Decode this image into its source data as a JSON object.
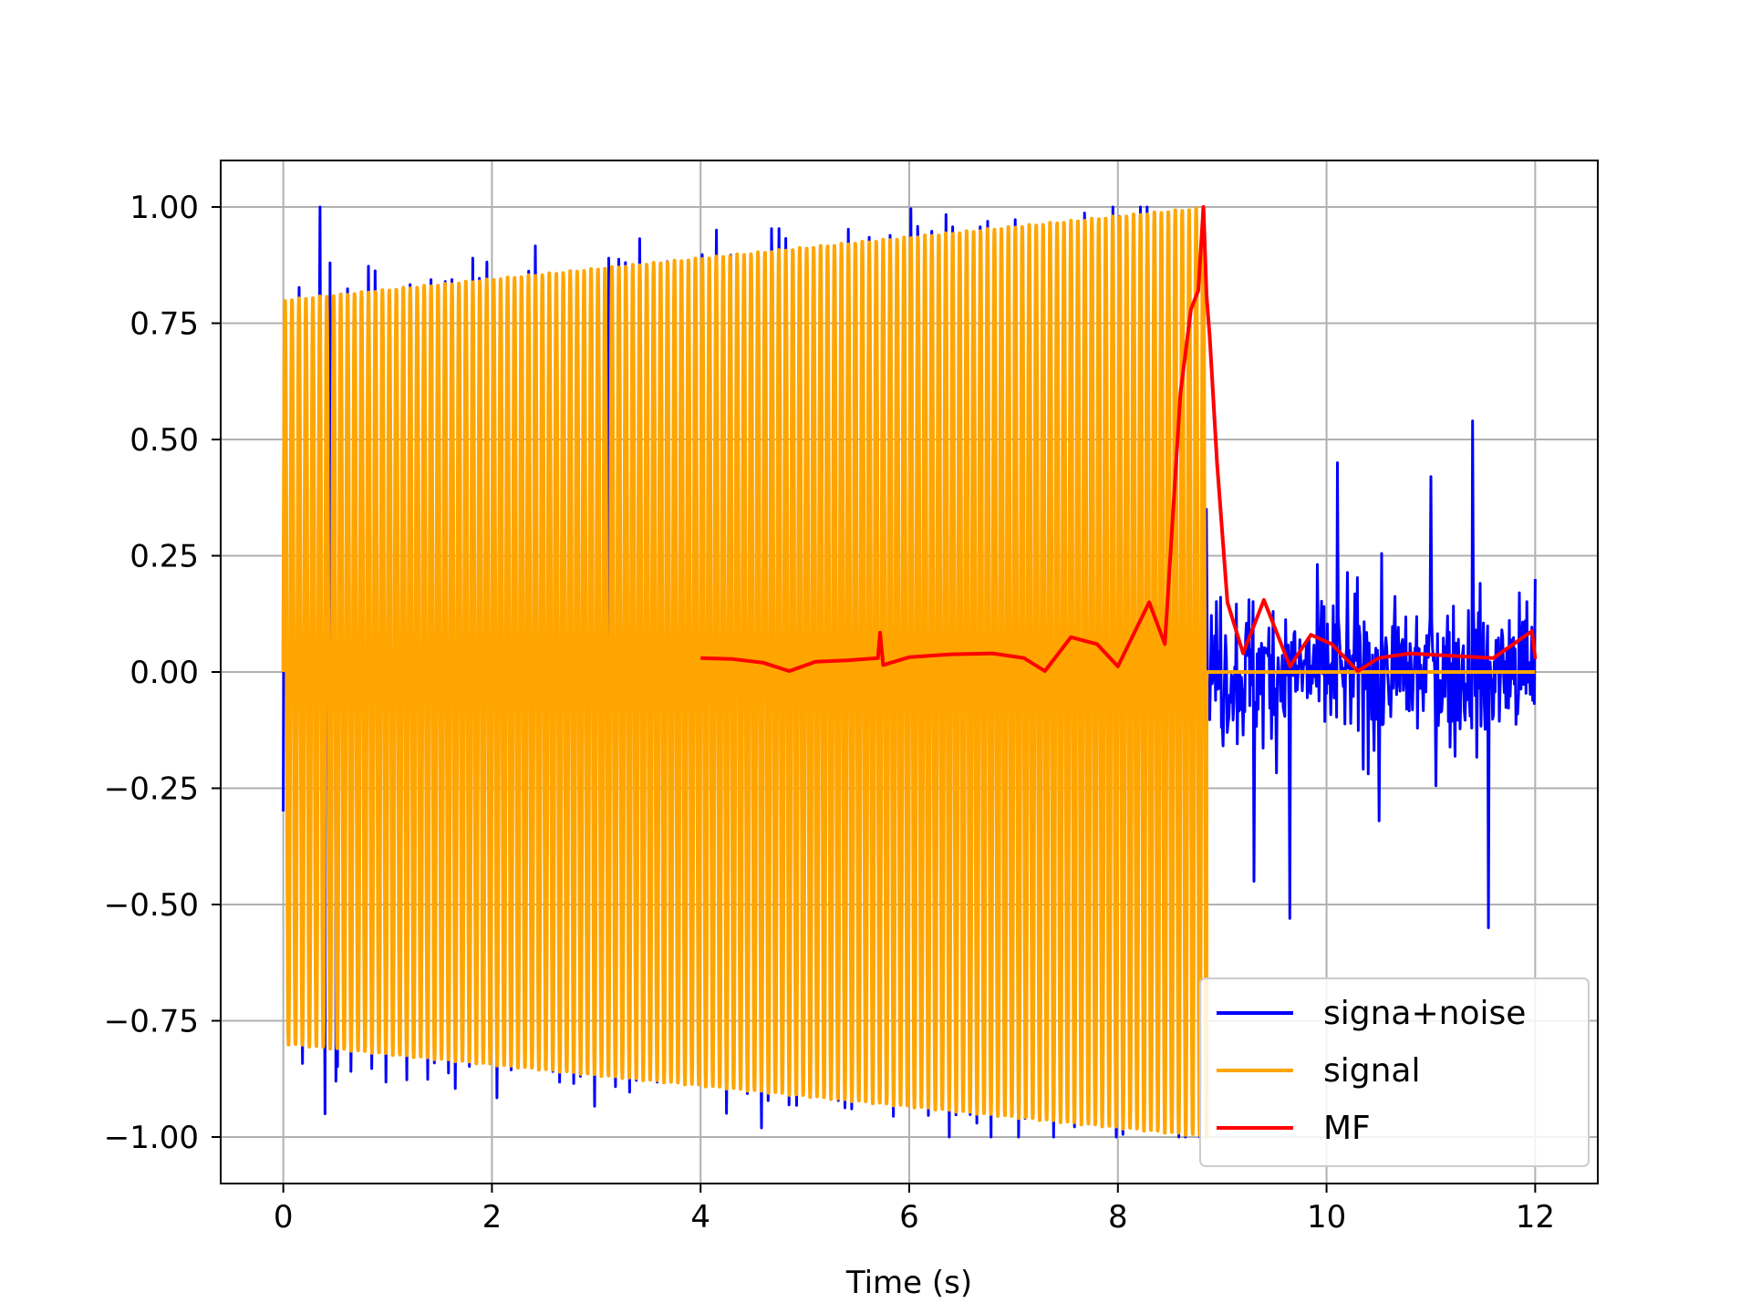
{
  "chart_data": {
    "type": "line",
    "title": "",
    "xlabel": "Time (s)",
    "ylabel": "",
    "xlim": [
      -0.6,
      12.6
    ],
    "ylim": [
      -1.1,
      1.1
    ],
    "grid": true,
    "legend_position": "lower right",
    "x_ticks": [
      0,
      2,
      4,
      6,
      8,
      10,
      12
    ],
    "x_tick_labels": [
      "0",
      "2",
      "4",
      "6",
      "8",
      "10",
      "12"
    ],
    "y_ticks": [
      1.0,
      0.75,
      0.5,
      0.25,
      0.0,
      -0.25,
      -0.5,
      -0.75,
      -1.0
    ],
    "y_tick_labels": [
      "1.00",
      "0.75",
      "0.50",
      "0.25",
      "0.00",
      "−0.25",
      "−0.50",
      "−0.75",
      "−1.00"
    ],
    "series": [
      {
        "name": "signa+noise",
        "color": "#0000ff",
        "description_points": {
          "x": [
            0.0,
            0.35,
            0.4,
            0.45,
            0.5,
            3.12,
            8.85,
            9.3,
            9.65,
            10.1,
            10.5,
            11.0,
            11.4,
            11.55,
            12.0
          ],
          "y": [
            -0.3,
            1.0,
            -0.95,
            0.88,
            -0.88,
            0.89,
            0.35,
            -0.45,
            -0.53,
            0.45,
            -0.32,
            0.42,
            0.54,
            -0.55,
            0.2
          ]
        }
      },
      {
        "name": "signal",
        "color": "#ffa500",
        "envelope_start": [
          0.05,
          0.8
        ],
        "envelope_end": [
          8.85,
          1.0
        ],
        "end_time": 8.85,
        "after_end_value": 0.0
      },
      {
        "name": "MF",
        "color": "#ff0000",
        "x": [
          4.0,
          4.3,
          4.6,
          4.85,
          5.1,
          5.4,
          5.7,
          5.72,
          5.75,
          6.0,
          6.4,
          6.8,
          7.1,
          7.3,
          7.55,
          7.8,
          8.0,
          8.3,
          8.45,
          8.6,
          8.7,
          8.77,
          8.82,
          8.85,
          8.88,
          8.95,
          9.05,
          9.2,
          9.4,
          9.65,
          9.85,
          10.05,
          10.3,
          10.5,
          10.8,
          11.2,
          11.6,
          11.97,
          12.0
        ],
        "y": [
          0.03,
          0.028,
          0.02,
          0.002,
          0.022,
          0.025,
          0.03,
          0.085,
          0.015,
          0.032,
          0.038,
          0.04,
          0.03,
          0.002,
          0.075,
          0.06,
          0.012,
          0.15,
          0.06,
          0.6,
          0.78,
          0.82,
          1.0,
          0.81,
          0.72,
          0.45,
          0.15,
          0.04,
          0.155,
          0.012,
          0.08,
          0.06,
          0.002,
          0.03,
          0.04,
          0.035,
          0.03,
          0.088,
          0.028
        ]
      }
    ]
  }
}
